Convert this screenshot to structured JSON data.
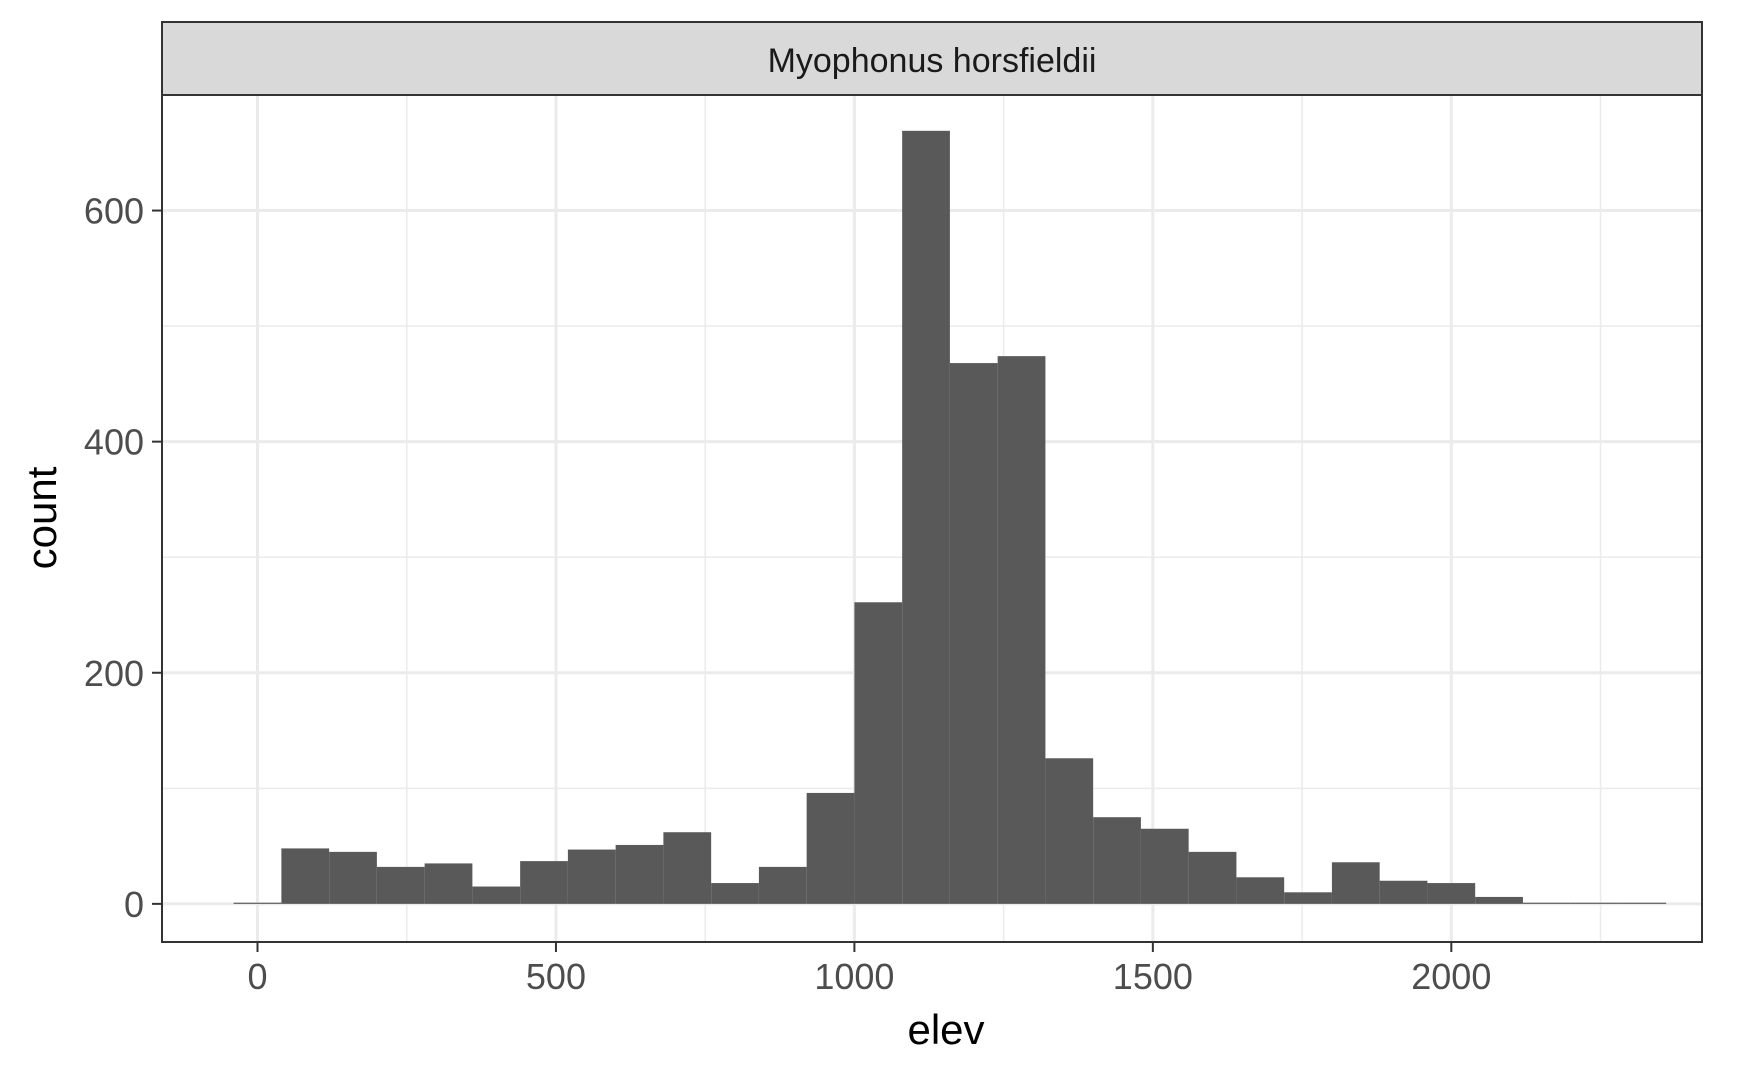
{
  "chart_data": {
    "type": "bar",
    "facet_label": "Myophonus horsfieldii",
    "xlabel": "elev",
    "ylabel": "count",
    "xlim": [
      -160,
      2420
    ],
    "ylim": [
      -33,
      700
    ],
    "x_ticks": [
      0,
      500,
      1000,
      1500,
      2000
    ],
    "x_tick_labels": [
      "0",
      "500",
      "1000",
      "1500",
      "2000"
    ],
    "y_ticks": [
      0,
      200,
      400,
      600
    ],
    "y_tick_labels": [
      "0",
      "200",
      "400",
      "600"
    ],
    "x_minor_ticks": [
      250,
      750,
      1250,
      1750,
      2250
    ],
    "y_minor_ticks": [
      100,
      300,
      500
    ],
    "grid": true,
    "bar_color": "#595959",
    "bin_width": 80,
    "bins_start": [
      -40,
      40,
      120,
      200,
      280,
      360,
      440,
      520,
      600,
      680,
      760,
      840,
      920,
      1000,
      1080,
      1160,
      1240,
      1320,
      1400,
      1480,
      1560,
      1640,
      1720,
      1800,
      1880,
      1960,
      2040,
      2120,
      2200,
      2280
    ],
    "values": [
      1,
      48,
      45,
      32,
      35,
      15,
      37,
      47,
      51,
      62,
      18,
      32,
      96,
      261,
      669,
      468,
      474,
      126,
      75,
      65,
      45,
      23,
      10,
      36,
      20,
      18,
      6,
      1,
      1,
      1
    ]
  }
}
